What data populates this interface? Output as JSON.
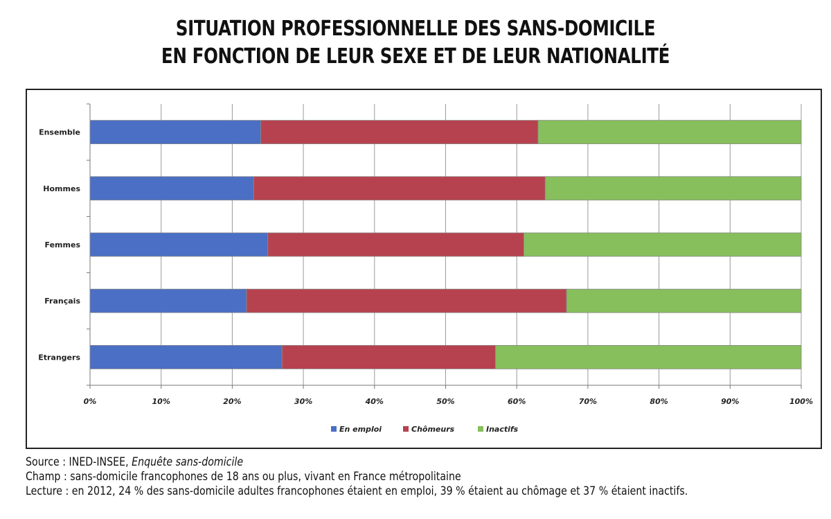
{
  "title": {
    "line1": "SITUATION PROFESSIONNELLE DES SANS-DOMICILE",
    "line2": "EN FONCTION DE LEUR SEXE ET DE LEUR NATIONALITÉ"
  },
  "notes": {
    "source_label": "Source : INED-INSEE, ",
    "source_title": "Enquête sans-domicile",
    "champ": "Champ : sans-domicile francophones de 18 ans ou plus, vivant en France métropolitaine",
    "lecture": "Lecture : en 2012, 24 % des sans-domicile adultes francophones étaient en emploi, 39 % étaient au chômage et 37 % étaient inactifs."
  },
  "chart_data": {
    "type": "bar",
    "orientation": "horizontal",
    "stacked": "percent",
    "categories": [
      "Ensemble",
      "Hommes",
      "Femmes",
      "Français",
      "Etrangers"
    ],
    "series": [
      {
        "name": "En emploi",
        "color": "#4a6fc4",
        "values": [
          24,
          23,
          25,
          22,
          27
        ]
      },
      {
        "name": "Chômeurs",
        "color": "#b7424f",
        "values": [
          39,
          41,
          36,
          45,
          30
        ]
      },
      {
        "name": "Inactifs",
        "color": "#86bf5c",
        "values": [
          37,
          36,
          39,
          33,
          43
        ]
      }
    ],
    "xticks": [
      "0%",
      "10%",
      "20%",
      "30%",
      "40%",
      "50%",
      "60%",
      "70%",
      "80%",
      "90%",
      "100%"
    ],
    "xlim": [
      0,
      100
    ],
    "grid": true,
    "legend_position": "bottom"
  }
}
